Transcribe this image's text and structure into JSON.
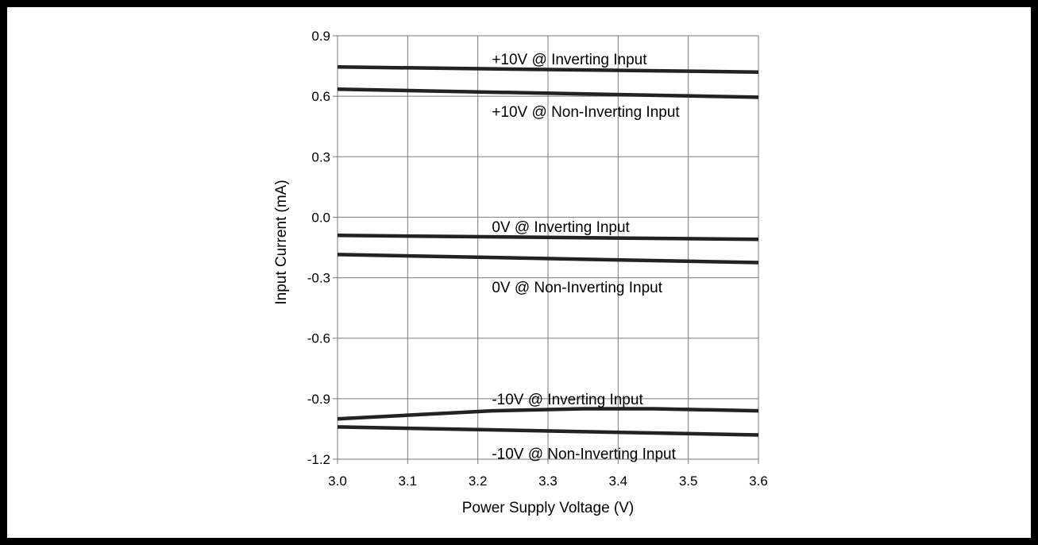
{
  "chart_data": {
    "type": "line",
    "xlabel": "Power Supply Voltage (V)",
    "ylabel": "Input Current (mA)",
    "xlim": [
      3.0,
      3.6
    ],
    "ylim": [
      -1.2,
      0.9
    ],
    "grid": true,
    "x_ticks": [
      "3.0",
      "3.1",
      "3.2",
      "3.3",
      "3.4",
      "3.5",
      "3.6"
    ],
    "y_ticks": [
      "0.9",
      "0.6",
      "0.3",
      "0.0",
      "-0.3",
      "-0.6",
      "-0.9",
      "-1.2"
    ],
    "series": [
      {
        "name": "+10V @ Inverting Input",
        "x": [
          3.0,
          3.6
        ],
        "y": [
          0.745,
          0.72
        ]
      },
      {
        "name": "+10V @ Non-Inverting Input",
        "x": [
          3.0,
          3.6
        ],
        "y": [
          0.635,
          0.595
        ]
      },
      {
        "name": "0V @ Inverting Input",
        "x": [
          3.0,
          3.6
        ],
        "y": [
          -0.09,
          -0.11
        ]
      },
      {
        "name": "0V @ Non-Inverting Input",
        "x": [
          3.0,
          3.6
        ],
        "y": [
          -0.185,
          -0.225
        ]
      },
      {
        "name": "-10V @ Inverting Input",
        "x": [
          3.0,
          3.22,
          3.35,
          3.45,
          3.6
        ],
        "y": [
          -1.0,
          -0.96,
          -0.95,
          -0.95,
          -0.96
        ]
      },
      {
        "name": "-10V @ Non-Inverting Input",
        "x": [
          3.0,
          3.6
        ],
        "y": [
          -1.04,
          -1.08
        ]
      }
    ],
    "annotations": [
      {
        "text": "+10V @ Inverting Input",
        "x": 3.22,
        "y": 0.785
      },
      {
        "text": "+10V @ Non-Inverting Input",
        "x": 3.22,
        "y": 0.525
      },
      {
        "text": "0V @ Inverting Input",
        "x": 3.22,
        "y": -0.045
      },
      {
        "text": "0V @ Non-Inverting Input",
        "x": 3.22,
        "y": -0.345
      },
      {
        "text": "-10V @ Inverting Input",
        "x": 3.22,
        "y": -0.9
      },
      {
        "text": "-10V @ Non-Inverting Input",
        "x": 3.22,
        "y": -1.17
      }
    ]
  }
}
